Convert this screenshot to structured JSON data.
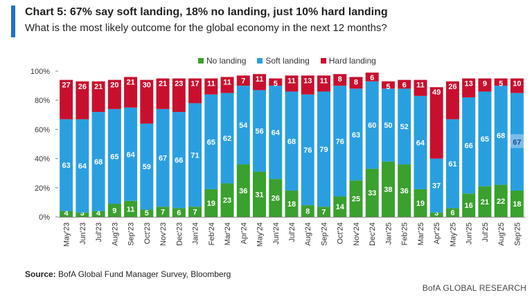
{
  "header": {
    "title": "Chart 5: 67% say soft landing, 18% no landing, just 10% hard landing",
    "subtitle": "What is the most likely outcome for the global economy in the next 12 months?"
  },
  "colors": {
    "accent": "#1f6fd1",
    "no_landing": "#3aa02e",
    "soft_landing": "#2a9fe0",
    "hard_landing": "#c8102e"
  },
  "chart_data": {
    "type": "bar",
    "stacked": true,
    "categories": [
      "May'23",
      "Jun'23",
      "Jul'23",
      "Aug'23",
      "Sep'23",
      "Oct'23",
      "Nov'23",
      "Dec'23",
      "Jan'24",
      "Feb'24",
      "Mar'24",
      "Apr'24",
      "May'24",
      "Jun'24",
      "Jul'24",
      "Aug'24",
      "Sep'24",
      "Oct'24",
      "Nov'24",
      "Dec'24",
      "Jan'25",
      "Feb'25",
      "Mar'25",
      "Apr'25",
      "May'25",
      "Jun'25",
      "Jul'25",
      "Aug'25",
      "Sep'25"
    ],
    "series": [
      {
        "name": "No landing",
        "color": "#3aa02e",
        "values": [
          4,
          3,
          4,
          9,
          11,
          5,
          7,
          6,
          7,
          19,
          23,
          36,
          31,
          26,
          18,
          8,
          7,
          14,
          25,
          33,
          38,
          36,
          19,
          3,
          6,
          16,
          21,
          22,
          18
        ]
      },
      {
        "name": "Soft landing",
        "color": "#2a9fe0",
        "values": [
          63,
          64,
          68,
          65,
          64,
          59,
          67,
          66,
          71,
          65,
          62,
          54,
          56,
          64,
          68,
          76,
          79,
          76,
          63,
          60,
          50,
          52,
          64,
          37,
          61,
          66,
          65,
          68,
          67
        ]
      },
      {
        "name": "Hard landing",
        "color": "#c8102e",
        "values": [
          27,
          26,
          21,
          20,
          21,
          30,
          21,
          23,
          17,
          11,
          11,
          7,
          11,
          5,
          11,
          13,
          11,
          8,
          8,
          6,
          5,
          6,
          11,
          49,
          26,
          13,
          9,
          5,
          10
        ]
      }
    ],
    "yticks": [
      "0%",
      "20%",
      "40%",
      "60%",
      "80%",
      "100%"
    ],
    "ylim": [
      0,
      100
    ],
    "legend_position": "top-center"
  },
  "footer": {
    "source_label": "Source:",
    "source_text": "BofA Global Fund Manager Survey, Bloomberg",
    "brand": "BofA GLOBAL RESEARCH"
  }
}
